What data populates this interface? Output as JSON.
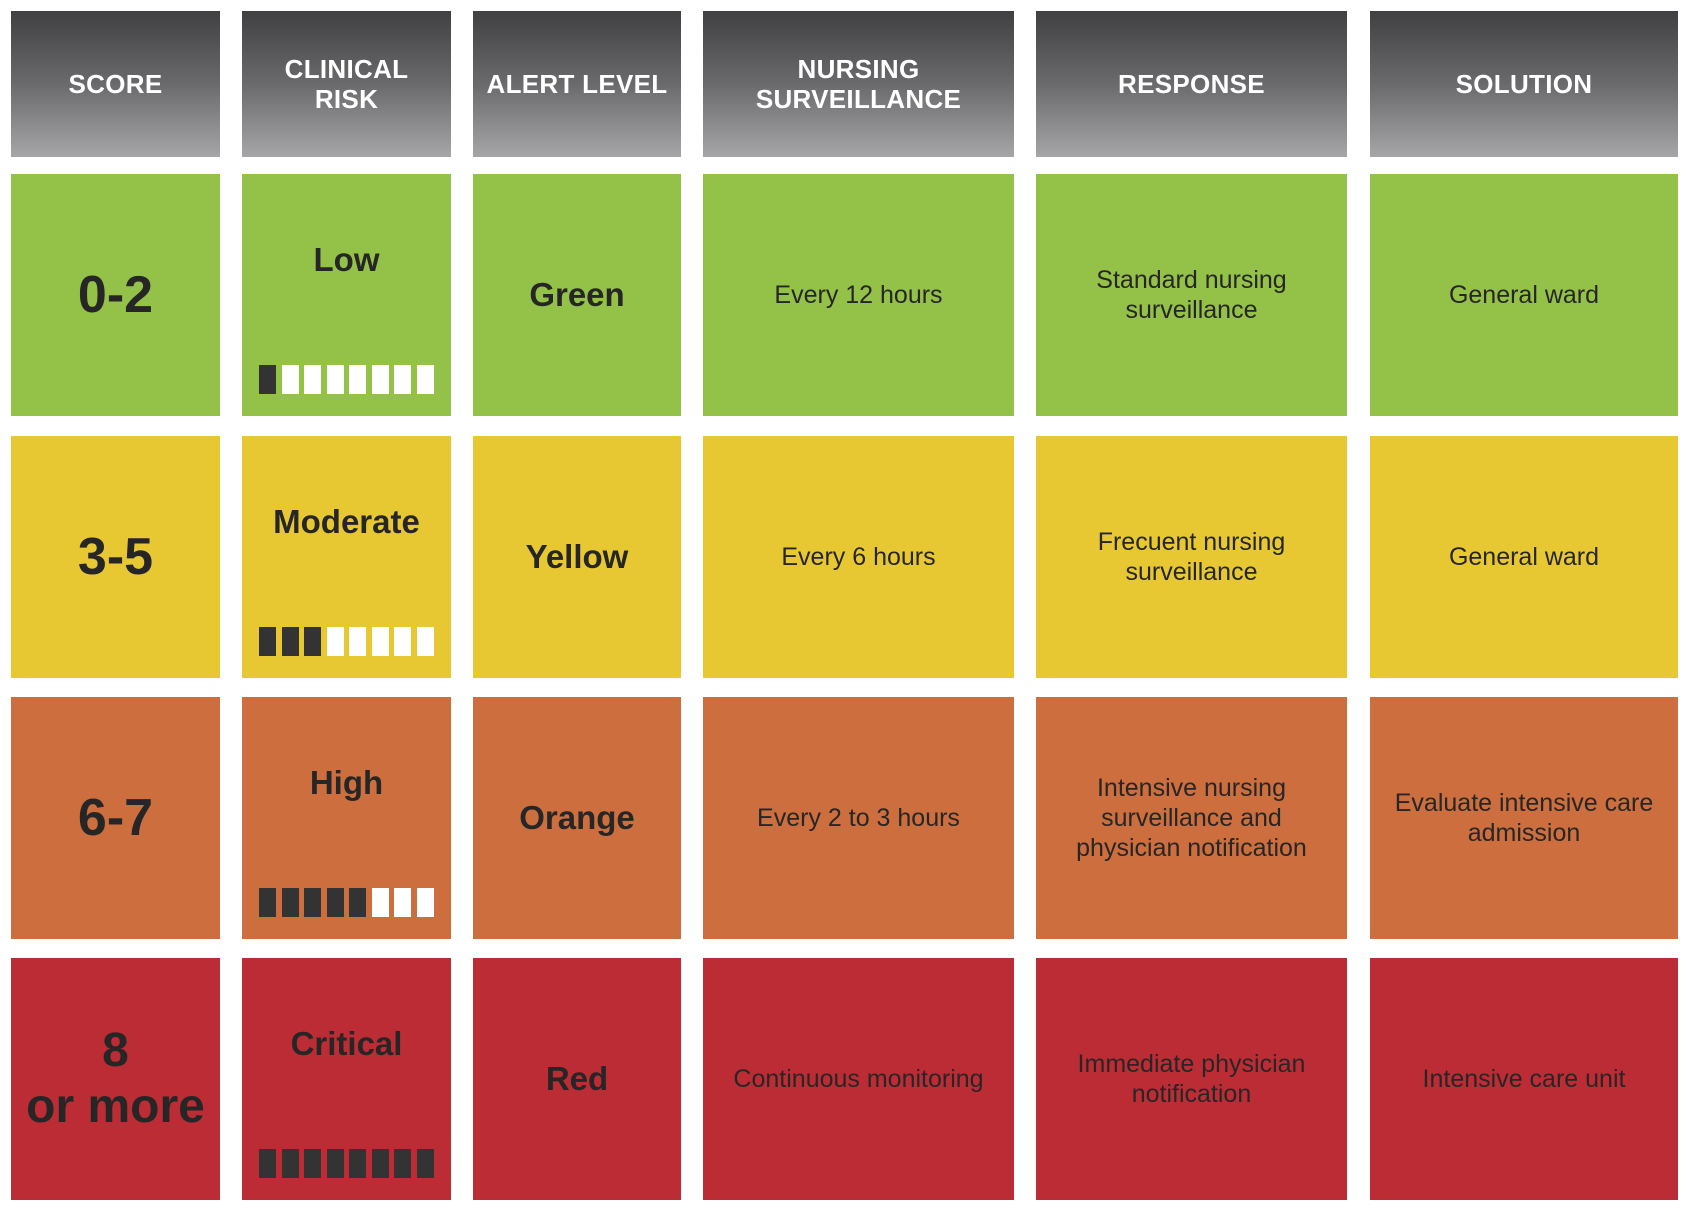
{
  "headers": {
    "score": "SCORE",
    "clinical_risk": "CLINICAL\nRISK",
    "alert_level": "ALERT LEVEL",
    "nursing_surveillance": "NURSING\nSURVEILLANCE",
    "response": "RESPONSE",
    "solution": "SOLUTION"
  },
  "colors": {
    "header_top": "#404042",
    "header_bottom": "#a6a6a8",
    "green": "#94c147",
    "yellow": "#e8c832",
    "orange": "#cd6e3f",
    "red": "#bc2c35",
    "meter_filled": "#333333",
    "meter_empty": "#ffffff"
  },
  "rows": [
    {
      "score": "0-2",
      "risk": "Low",
      "risk_level_filled": 1,
      "risk_level_total": 8,
      "alert": "Green",
      "surveillance": "Every 12 hours",
      "response": "Standard nursing\nsurveillance",
      "solution": "General ward",
      "color": "#94c147"
    },
    {
      "score": "3-5",
      "risk": "Moderate",
      "risk_level_filled": 3,
      "risk_level_total": 8,
      "alert": "Yellow",
      "surveillance": "Every 6 hours",
      "response": "Frecuent nursing\nsurveillance",
      "solution": "General ward",
      "color": "#e8c832"
    },
    {
      "score": "6-7",
      "risk": "High",
      "risk_level_filled": 5,
      "risk_level_total": 8,
      "alert": "Orange",
      "surveillance": "Every 2 to 3 hours",
      "response": "Intensive nursing\nsurveillance and\nphysician notification",
      "solution": "Evaluate intensive care\nadmission",
      "color": "#cd6e3f"
    },
    {
      "score": "8\nor more",
      "risk": "Critical",
      "risk_level_filled": 8,
      "risk_level_total": 8,
      "alert": "Red",
      "surveillance": "Continuous monitoring",
      "response": "Immediate physician\nnotification",
      "solution": "Intensive care unit",
      "color": "#bc2c35"
    }
  ]
}
